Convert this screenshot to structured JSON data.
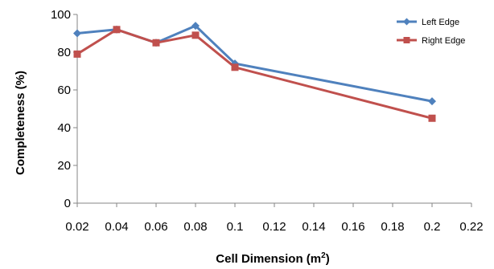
{
  "chart_data": {
    "type": "line",
    "xlabel": "Cell Dimension  (m",
    "xlabel_superscript": "2",
    "xlabel_suffix": ")",
    "ylabel": "Completeness (%)",
    "xlim": [
      0.02,
      0.22
    ],
    "ylim": [
      0,
      100
    ],
    "x_ticks": [
      "0.02",
      "0.04",
      "0.06",
      "0.08",
      "0.1",
      "0.12",
      "0.14",
      "0.16",
      "0.18",
      "0.2",
      "0.22"
    ],
    "y_ticks": [
      "0",
      "20",
      "40",
      "60",
      "80",
      "100"
    ],
    "grid": false,
    "legend_position": "top-right",
    "series": [
      {
        "name": "Left Edge",
        "color": "#4f81bd",
        "marker": "diamond",
        "x": [
          0.02,
          0.04,
          0.06,
          0.08,
          0.1,
          0.2
        ],
        "y": [
          90,
          92,
          85,
          94,
          74,
          54
        ]
      },
      {
        "name": "Right Edge",
        "color": "#c0504d",
        "marker": "square",
        "x": [
          0.02,
          0.04,
          0.06,
          0.08,
          0.1,
          0.2
        ],
        "y": [
          79,
          92,
          85,
          89,
          72,
          45
        ]
      }
    ]
  }
}
